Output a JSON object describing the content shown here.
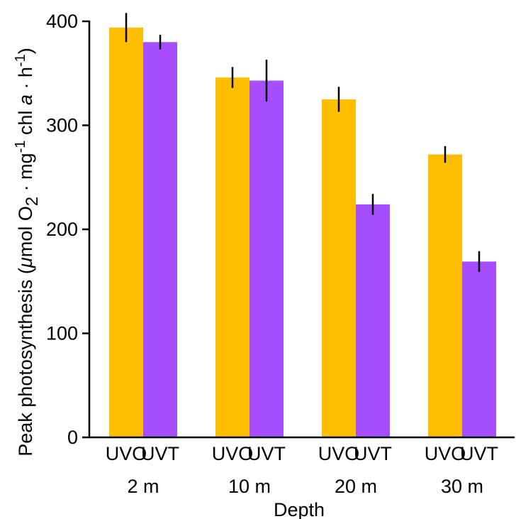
{
  "chart_data": {
    "type": "bar",
    "title": "",
    "xlabel": "Depth",
    "ylabel": {
      "prefix": "Peak photosynthesis (",
      "mu": "μ",
      "after_mu": "mol O",
      "o2_sub": "2",
      "dot1": " · mg",
      "sup1": "-1",
      "chl": " chl ",
      "a": "a",
      "dot2": " · h",
      "sup2": "-1",
      "suffix": ")"
    },
    "ylim": [
      0,
      400
    ],
    "yticks": [
      "0",
      "100",
      "200",
      "300",
      "400"
    ],
    "grid": false,
    "legend": "none",
    "categories": [
      "2 m",
      "10 m",
      "20 m",
      "30 m"
    ],
    "series": [
      {
        "name": "UVO",
        "color": "#FFBF00",
        "values": [
          394,
          346,
          325,
          272
        ],
        "errors": [
          14,
          10,
          12,
          8
        ]
      },
      {
        "name": "UVT",
        "color": "#A64DFF",
        "values": [
          380,
          343,
          224,
          169
        ],
        "errors": [
          7,
          20,
          10,
          10
        ]
      }
    ]
  }
}
